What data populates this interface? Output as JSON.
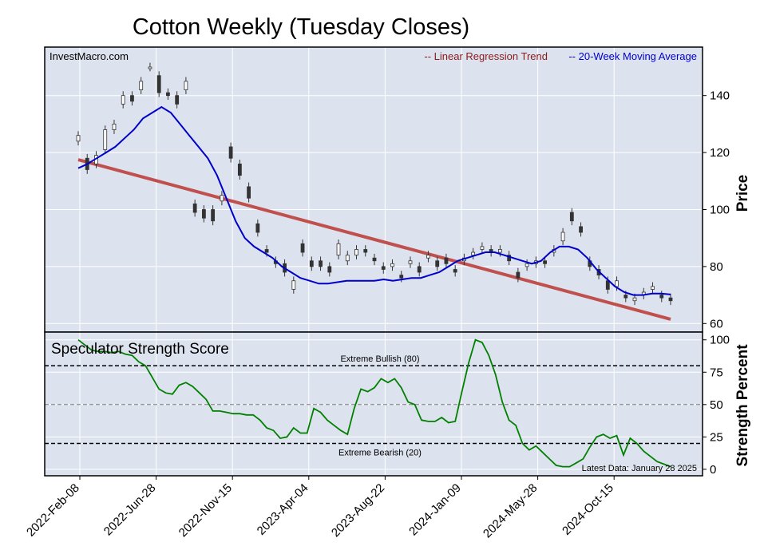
{
  "chart_data": {
    "type": "line",
    "title": "Cotton Weekly (Tuesday Closes)",
    "source_label": "InvestMacro.com",
    "x_tick_labels": [
      "2022-Feb-08",
      "2022-Jun-28",
      "2022-Nov-15",
      "2023-Apr-04",
      "2023-Aug-22",
      "2024-Jan-09",
      "2024-May-28",
      "2024-Oct-15"
    ],
    "price_panel": {
      "ylabel": "Price",
      "ylim": [
        57,
        157
      ],
      "y_ticks": [
        60,
        80,
        100,
        120,
        140
      ],
      "legend": [
        "-- Linear Regression Trend",
        "-- 20-Week Moving Average"
      ],
      "legend_placement": "top-right",
      "colors": {
        "trend": "#c0504d",
        "ma": "#0000cc",
        "candle_up": "#ffffff",
        "candle_down": "#333333",
        "bg": "#dde3ee"
      },
      "trend": {
        "start": 117.5,
        "end": 61.5
      },
      "series": [
        {
          "name": "20-Week Moving Average",
          "values": [
            114.5,
            116,
            118,
            120,
            122,
            125,
            128,
            132,
            134,
            136,
            134,
            130,
            126,
            122,
            118,
            112,
            104,
            96,
            90,
            87,
            85,
            83,
            80,
            78,
            76,
            75,
            74,
            74,
            74.5,
            75,
            75,
            75,
            75,
            75.5,
            75,
            75.5,
            76,
            76,
            77,
            78,
            80,
            82,
            83,
            84,
            85,
            85,
            84,
            83,
            82,
            81,
            82,
            85,
            87,
            87,
            86,
            83,
            79,
            76,
            73,
            71,
            70,
            70,
            70.5,
            70.5,
            70.2
          ]
        }
      ],
      "candles": [
        {
          "o": 124,
          "c": 126
        },
        {
          "o": 118,
          "c": 114
        },
        {
          "o": 116,
          "c": 119
        },
        {
          "o": 121,
          "c": 128
        },
        {
          "o": 128,
          "c": 130
        },
        {
          "o": 137,
          "c": 140
        },
        {
          "o": 140,
          "c": 138
        },
        {
          "o": 142,
          "c": 145
        },
        {
          "o": 150,
          "c": 150
        },
        {
          "o": 147,
          "c": 141
        },
        {
          "o": 141,
          "c": 140
        },
        {
          "o": 140,
          "c": 137
        },
        {
          "o": 142,
          "c": 145
        },
        {
          "o": 102,
          "c": 99
        },
        {
          "o": 100,
          "c": 97
        },
        {
          "o": 100,
          "c": 96
        },
        {
          "o": 103,
          "c": 105
        },
        {
          "o": 122,
          "c": 118
        },
        {
          "o": 116,
          "c": 112
        },
        {
          "o": 108,
          "c": 104
        },
        {
          "o": 95,
          "c": 92
        },
        {
          "o": 86,
          "c": 85
        },
        {
          "o": 82,
          "c": 81
        },
        {
          "o": 81,
          "c": 78
        },
        {
          "o": 72,
          "c": 75
        },
        {
          "o": 88,
          "c": 85
        },
        {
          "o": 82,
          "c": 80
        },
        {
          "o": 82,
          "c": 80
        },
        {
          "o": 80,
          "c": 78
        },
        {
          "o": 84,
          "c": 88
        },
        {
          "o": 82,
          "c": 84
        },
        {
          "o": 84,
          "c": 86
        },
        {
          "o": 86,
          "c": 85
        },
        {
          "o": 83,
          "c": 82
        },
        {
          "o": 80,
          "c": 79
        },
        {
          "o": 80,
          "c": 81
        },
        {
          "o": 77,
          "c": 76
        },
        {
          "o": 81,
          "c": 82
        },
        {
          "o": 80,
          "c": 78
        },
        {
          "o": 83,
          "c": 84
        },
        {
          "o": 82,
          "c": 80
        },
        {
          "o": 83,
          "c": 81
        },
        {
          "o": 79,
          "c": 78
        },
        {
          "o": 82,
          "c": 83
        },
        {
          "o": 84,
          "c": 85
        },
        {
          "o": 86,
          "c": 87
        },
        {
          "o": 86,
          "c": 85
        },
        {
          "o": 85,
          "c": 86
        },
        {
          "o": 84,
          "c": 82
        },
        {
          "o": 78,
          "c": 76
        },
        {
          "o": 80,
          "c": 81
        },
        {
          "o": 81,
          "c": 82
        },
        {
          "o": 82,
          "c": 81
        },
        {
          "o": 85,
          "c": 86
        },
        {
          "o": 89,
          "c": 92
        },
        {
          "o": 99,
          "c": 96
        },
        {
          "o": 94,
          "c": 92
        },
        {
          "o": 82,
          "c": 80
        },
        {
          "o": 79,
          "c": 77
        },
        {
          "o": 75,
          "c": 72
        },
        {
          "o": 73,
          "c": 75
        },
        {
          "o": 70,
          "c": 69
        },
        {
          "o": 68,
          "c": 69
        },
        {
          "o": 70,
          "c": 71
        },
        {
          "o": 72,
          "c": 73
        },
        {
          "o": 70,
          "c": 69
        },
        {
          "o": 69,
          "c": 68
        }
      ]
    },
    "score_panel": {
      "title": "Speculator Strength Score",
      "ylabel": "Strength Percent",
      "ylim": [
        -5,
        106
      ],
      "y_ticks": [
        0,
        25,
        50,
        75,
        100
      ],
      "lines": [
        {
          "label": "Extreme Bullish (80)",
          "value": 80
        },
        {
          "label": "",
          "value": 50
        },
        {
          "label": "Extreme Bearish (20)",
          "value": 20
        }
      ],
      "footnote": "Latest Data: January 28 2025",
      "series_color": "#008000",
      "values": [
        100,
        96,
        92,
        91,
        91,
        90,
        91,
        89,
        88,
        83,
        80,
        71,
        62,
        59,
        58,
        65,
        67,
        64,
        59,
        54,
        45,
        45,
        44,
        43,
        43,
        42,
        42,
        38,
        32,
        30,
        24,
        25,
        32,
        28,
        28,
        47,
        44,
        38,
        34,
        30,
        27,
        47,
        62,
        60,
        63,
        70,
        67,
        70,
        63,
        52,
        50,
        38,
        37,
        37,
        40,
        36,
        37,
        60,
        82,
        100,
        98,
        88,
        73,
        52,
        38,
        34,
        20,
        15,
        18,
        13,
        8,
        3,
        2,
        2,
        5,
        8,
        17,
        25,
        27,
        24,
        26,
        11,
        24,
        20,
        14,
        10,
        6,
        4,
        2
      ]
    }
  }
}
